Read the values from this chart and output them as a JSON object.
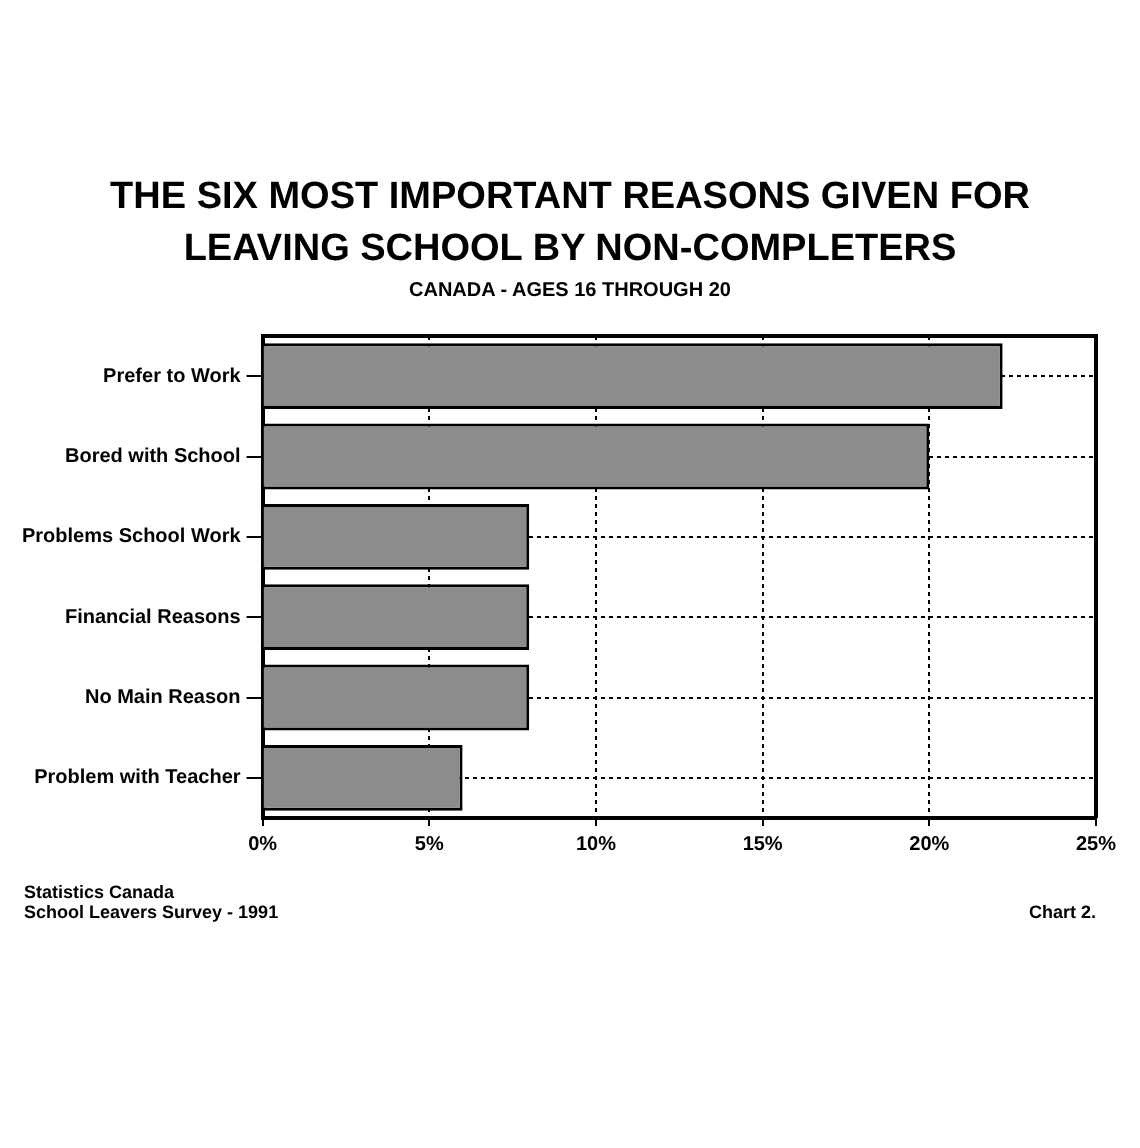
{
  "chart_data": {
    "type": "bar",
    "orientation": "horizontal",
    "title": "THE SIX MOST IMPORTANT REASONS GIVEN FOR LEAVING SCHOOL BY NON-COMPLETERS",
    "subtitle": "CANADA - AGES 16 THROUGH 20",
    "categories": [
      "Prefer to Work",
      "Bored with School",
      "Problems School Work",
      "Financial Reasons",
      "No Main Reason",
      "Problem with Teacher"
    ],
    "values": [
      22.2,
      20,
      8,
      8,
      8,
      6
    ],
    "color": "#8c8c8c",
    "xlim": [
      0,
      25
    ],
    "xticks": [
      {
        "value": 0,
        "label": "0%"
      },
      {
        "value": 5,
        "label": "5%"
      },
      {
        "value": 10,
        "label": "10%"
      },
      {
        "value": 15,
        "label": "15%"
      },
      {
        "value": 20,
        "label": "20%"
      },
      {
        "value": 25,
        "label": "25%"
      }
    ],
    "grid": true,
    "annotations": [
      "Statistics Canada",
      "School Leavers Survey - 1991",
      "Chart 2."
    ]
  }
}
